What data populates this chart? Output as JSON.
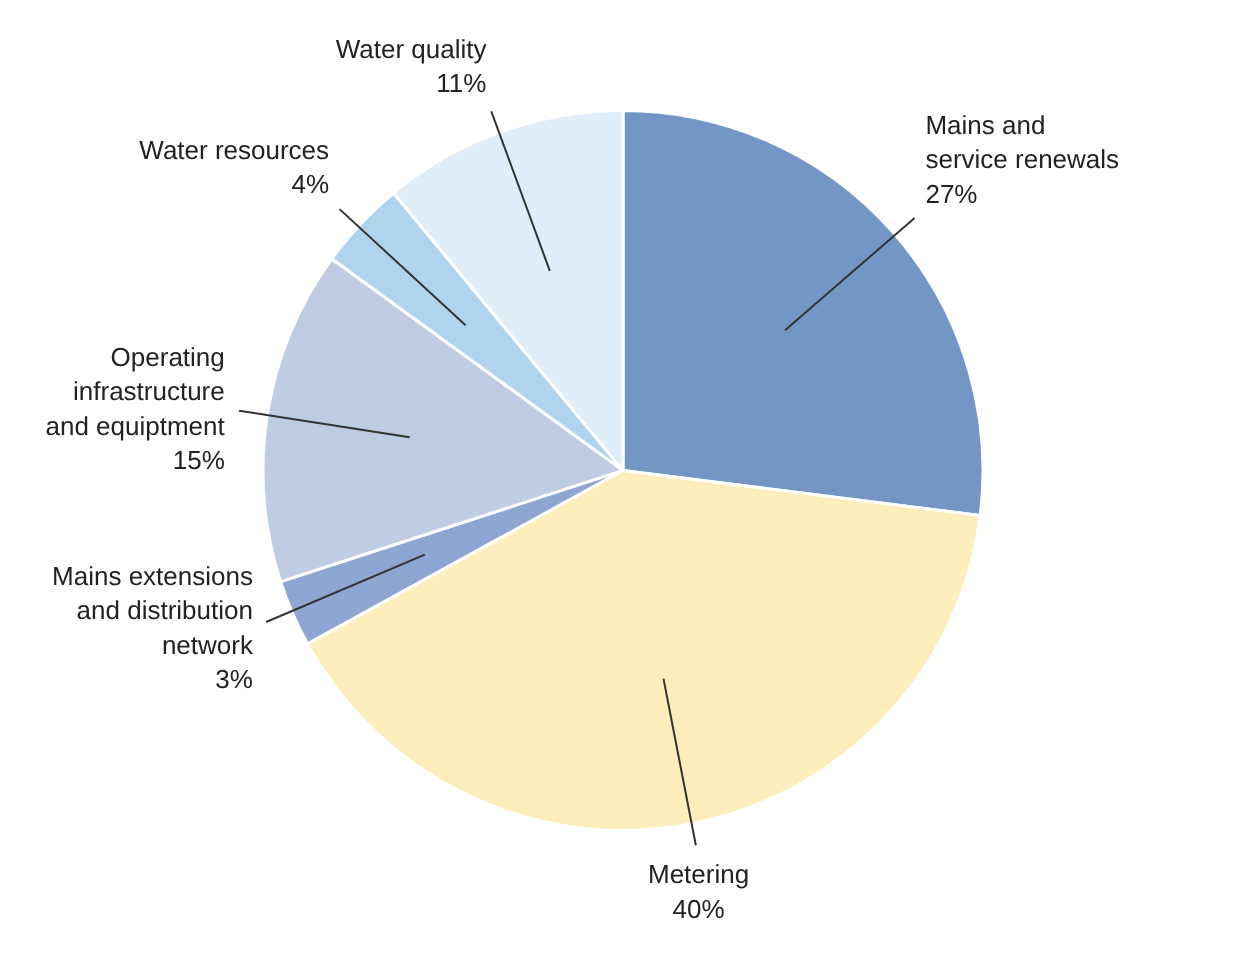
{
  "chart_data": {
    "type": "pie",
    "categories": [
      "Mains and\nservice renewals",
      "Metering",
      "Mains extensions\nand distribution\nnetwork",
      "Operating\ninfrastructure\nand equiptment",
      "Water resources",
      "Water quality"
    ],
    "values": [
      27,
      40,
      3,
      15,
      4,
      11
    ],
    "value_labels": [
      "27%",
      "40%",
      "3%",
      "15%",
      "4%",
      "11%"
    ],
    "colors": [
      "#7496c4",
      "#fdeebb",
      "#8ea7d2",
      "#c0cbe4",
      "#b0d4ee",
      "#e1edf8"
    ]
  }
}
